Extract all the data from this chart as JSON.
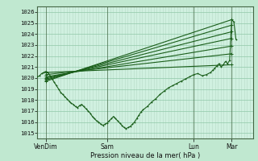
{
  "background_color": "#c0e8d0",
  "plot_bg_color": "#d0f0e0",
  "grid_color_h": "#90c8a8",
  "grid_color_v": "#b8dcc8",
  "line_color": "#1a5e1a",
  "ylim": [
    1014.5,
    1026.5
  ],
  "yticks": [
    1015,
    1016,
    1017,
    1018,
    1019,
    1020,
    1021,
    1022,
    1023,
    1024,
    1025,
    1026
  ],
  "xlabel": "Pression niveau de la mer( hPa )",
  "xtick_labels": [
    "VenDim",
    "Sam",
    "Lun",
    "Mar"
  ],
  "xtick_positions": [
    0.04,
    0.33,
    0.74,
    0.92
  ],
  "xlim": [
    0.0,
    1.02
  ],
  "forecast_lines": [
    [
      [
        0.04,
        1020.5
      ],
      [
        0.92,
        1021.2
      ]
    ],
    [
      [
        0.04,
        1020.3
      ],
      [
        0.92,
        1022.2
      ]
    ],
    [
      [
        0.04,
        1020.1
      ],
      [
        0.92,
        1022.9
      ]
    ],
    [
      [
        0.04,
        1020.0
      ],
      [
        0.92,
        1023.6
      ]
    ],
    [
      [
        0.04,
        1019.9
      ],
      [
        0.92,
        1024.2
      ]
    ],
    [
      [
        0.04,
        1019.8
      ],
      [
        0.92,
        1024.8
      ]
    ],
    [
      [
        0.04,
        1019.7
      ],
      [
        0.92,
        1025.3
      ]
    ]
  ],
  "main_line_x": [
    0.0,
    0.01,
    0.02,
    0.03,
    0.04,
    0.05,
    0.06,
    0.07,
    0.08,
    0.09,
    0.1,
    0.11,
    0.12,
    0.13,
    0.14,
    0.15,
    0.16,
    0.17,
    0.18,
    0.19,
    0.2,
    0.21,
    0.22,
    0.23,
    0.24,
    0.25,
    0.26,
    0.27,
    0.28,
    0.29,
    0.3,
    0.31,
    0.32,
    0.33,
    0.34,
    0.35,
    0.36,
    0.37,
    0.38,
    0.39,
    0.4,
    0.41,
    0.42,
    0.43,
    0.44,
    0.45,
    0.46,
    0.47,
    0.48,
    0.49,
    0.5,
    0.52,
    0.54,
    0.56,
    0.58,
    0.6,
    0.62,
    0.64,
    0.66,
    0.68,
    0.7,
    0.72,
    0.74,
    0.76,
    0.78,
    0.8,
    0.82,
    0.83,
    0.84,
    0.85,
    0.86,
    0.87,
    0.88,
    0.89,
    0.9,
    0.91,
    0.92,
    0.93,
    0.94
  ],
  "main_line_y": [
    1020.1,
    1020.2,
    1020.4,
    1020.5,
    1020.6,
    1020.5,
    1020.2,
    1019.9,
    1019.6,
    1019.3,
    1019.0,
    1018.7,
    1018.5,
    1018.3,
    1018.1,
    1017.9,
    1017.7,
    1017.6,
    1017.4,
    1017.3,
    1017.5,
    1017.6,
    1017.4,
    1017.2,
    1017.0,
    1016.8,
    1016.5,
    1016.3,
    1016.1,
    1016.0,
    1015.8,
    1015.7,
    1015.8,
    1015.9,
    1016.1,
    1016.3,
    1016.5,
    1016.3,
    1016.1,
    1015.9,
    1015.7,
    1015.5,
    1015.4,
    1015.5,
    1015.6,
    1015.8,
    1016.0,
    1016.3,
    1016.6,
    1016.9,
    1017.1,
    1017.4,
    1017.8,
    1018.1,
    1018.5,
    1018.8,
    1019.1,
    1019.3,
    1019.5,
    1019.7,
    1019.9,
    1020.1,
    1020.3,
    1020.4,
    1020.2,
    1020.3,
    1020.5,
    1020.7,
    1020.9,
    1021.1,
    1021.3,
    1021.0,
    1021.2,
    1021.5,
    1021.3,
    1021.6,
    1025.3,
    1025.1,
    1023.5
  ]
}
